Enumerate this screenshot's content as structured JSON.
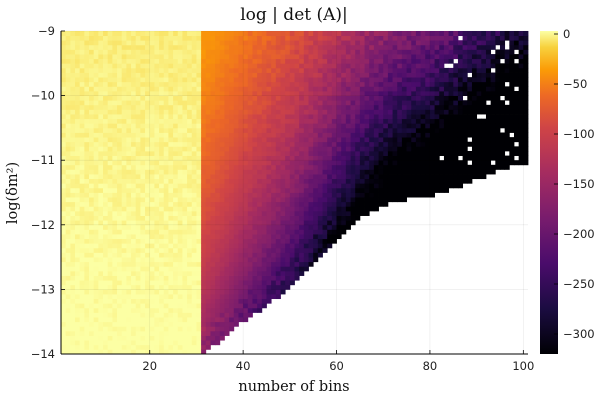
{
  "chart_data": {
    "type": "heatmap",
    "title": "log | det (A)|",
    "xlabel": "number of bins",
    "ylabel": "log(δm²)",
    "xlim": [
      1,
      101
    ],
    "ylim": [
      -14,
      -9
    ],
    "x_ticks": [
      20,
      40,
      60,
      80,
      100
    ],
    "y_ticks": [
      -14,
      -13,
      -12,
      -11,
      -10,
      -9
    ],
    "x_tick_labels": [
      "20",
      "40",
      "60",
      "80",
      "100"
    ],
    "y_tick_labels": [
      "−14",
      "−13",
      "−12",
      "−11",
      "−10",
      "−9"
    ],
    "grid": true,
    "colormap": "inferno",
    "colorbar": {
      "range": [
        -320,
        3
      ],
      "ticks": [
        0,
        -50,
        -100,
        -150,
        -200,
        -250,
        -300
      ],
      "tick_labels": [
        "0",
        "−50",
        "−100",
        "−150",
        "−200",
        "−250",
        "−300"
      ]
    },
    "boundary": {
      "description": "cells below the boundary are blank (undefined)",
      "x": [
        31,
        36,
        40,
        45,
        50,
        55,
        60,
        63,
        66,
        70,
        75,
        80,
        85,
        90,
        95,
        100
      ],
      "y": [
        -14.0,
        -13.75,
        -13.5,
        -13.25,
        -13.0,
        -12.6,
        -12.25,
        -12.05,
        -11.85,
        -11.7,
        -11.6,
        -11.55,
        -11.45,
        -11.3,
        -11.15,
        -11.05
      ]
    }
  }
}
